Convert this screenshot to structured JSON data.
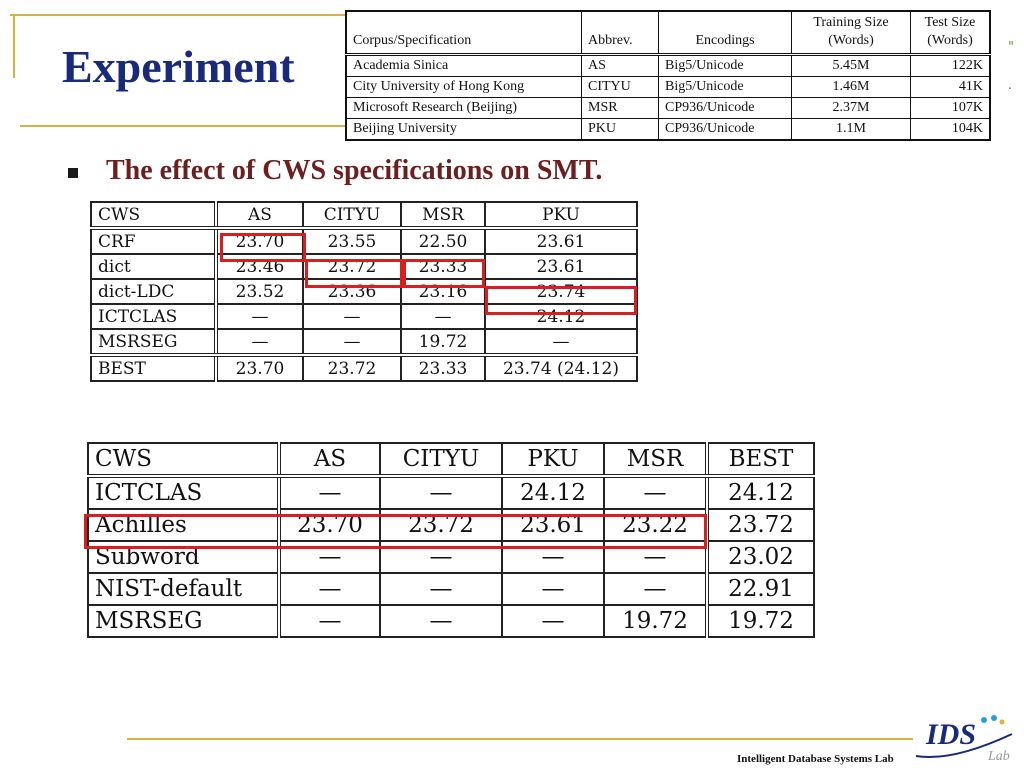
{
  "slide": {
    "title": "Experiment",
    "bullet": "The effect of CWS specifications on SMT.",
    "footer": "Intelligent Database Systems Lab",
    "logo_text": "IDS",
    "logo_sub": "Lab",
    "side_glyph": "\"",
    "side_dot": "."
  },
  "corpus_table": {
    "headers": [
      "Corpus/Specification",
      "Abbrev.",
      "Encodings",
      "Training Size (Words)",
      "Test Size (Words)"
    ],
    "rows": [
      [
        "Academia Sinica",
        "AS",
        "Big5/Unicode",
        "5.45M",
        "122K"
      ],
      [
        "City University of Hong Kong",
        "CITYU",
        "Big5/Unicode",
        "1.46M",
        "41K"
      ],
      [
        "Microsoft Research (Beijing)",
        "MSR",
        "CP936/Unicode",
        "2.37M",
        "107K"
      ],
      [
        "Beijing University",
        "PKU",
        "CP936/Unicode",
        "1.1M",
        "104K"
      ]
    ]
  },
  "table1": {
    "headers": [
      "CWS",
      "AS",
      "CITYU",
      "MSR",
      "PKU"
    ],
    "rows": [
      [
        "CRF",
        "23.70",
        "23.55",
        "22.50",
        "23.61"
      ],
      [
        "dict",
        "23.46",
        "23.72",
        "23.33",
        "23.61"
      ],
      [
        "dict-LDC",
        "23.52",
        "23.36",
        "23.16",
        "23.74"
      ],
      [
        "ICTCLAS",
        "—",
        "—",
        "—",
        "24.12"
      ],
      [
        "MSRSEG",
        "—",
        "—",
        "19.72",
        "—"
      ]
    ],
    "best": [
      "BEST",
      "23.70",
      "23.72",
      "23.33",
      "23.74 (24.12)"
    ]
  },
  "table2": {
    "headers": [
      "CWS",
      "AS",
      "CITYU",
      "PKU",
      "MSR",
      "BEST"
    ],
    "rows": [
      [
        "ICTCLAS",
        "—",
        "—",
        "24.12",
        "—",
        "24.12"
      ],
      [
        "Achilles",
        "23.70",
        "23.72",
        "23.61",
        "23.22",
        "23.72"
      ],
      [
        "Subword",
        "—",
        "—",
        "—",
        "—",
        "23.02"
      ],
      [
        "NIST-default",
        "—",
        "—",
        "—",
        "—",
        "22.91"
      ],
      [
        "MSRSEG",
        "—",
        "—",
        "—",
        "19.72",
        "19.72"
      ]
    ]
  },
  "colors": {
    "title": "#1a2a7a",
    "bullet": "#6b1f1f",
    "accent_line": "#d8b23f",
    "highlight": "#d81e1e"
  }
}
